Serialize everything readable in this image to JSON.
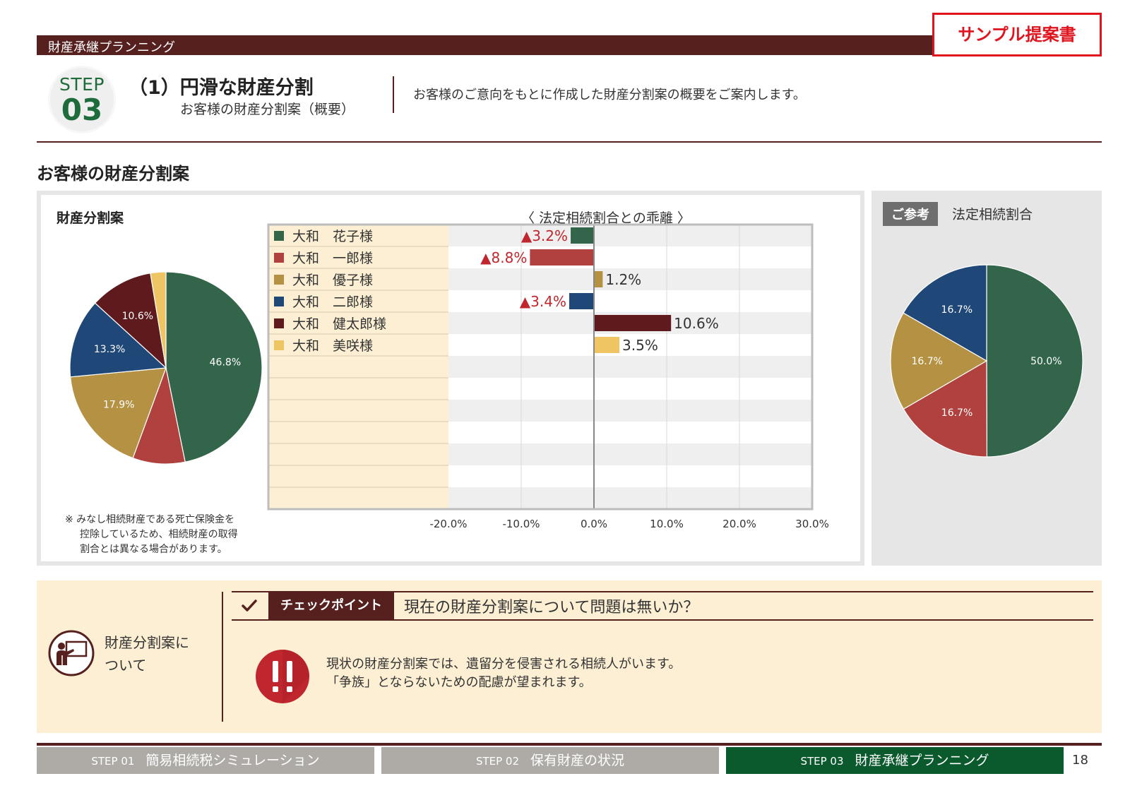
{
  "header": {
    "section_name": "財産承継プランニング",
    "sample_badge": "サンプル提案書"
  },
  "step": {
    "label": "STEP",
    "number": "03",
    "title": "（1）円滑な財産分割",
    "subtitle": "お客様の財産分割案（概要）",
    "intro": "お客様のご意向をもとに作成した財産分割案の概要をご案内します。"
  },
  "section_title": "お客様の財産分割案",
  "division_panel": {
    "title": "財産分割案",
    "gap_title": "〈 法定相続割合との乖離 〉",
    "note_line1": "※ みなし相続財産である死亡保険金を",
    "note_line2": "控除しているため、相続財産の取得",
    "note_line3": "割合とは異なる場合があります。"
  },
  "reference_panel": {
    "badge": "ご参考",
    "title": "法定相続割合"
  },
  "colors": {
    "green": "#33654a",
    "red": "#b0413e",
    "gold": "#b59243",
    "blue": "#1f4778",
    "maroon": "#5e1a1d",
    "yellow": "#efc564",
    "brand": "#56201f",
    "step_green": "#1e6b3c"
  },
  "chart_data": [
    {
      "type": "pie",
      "title": "財産分割案",
      "slices": [
        {
          "value": 46.8,
          "label": "46.8%",
          "color": "#33654a"
        },
        {
          "value": 8.8,
          "label": "",
          "color": "#b0413e"
        },
        {
          "value": 17.9,
          "label": "17.9%",
          "color": "#b59243"
        },
        {
          "value": 13.3,
          "label": "13.3%",
          "color": "#1f4778"
        },
        {
          "value": 10.6,
          "label": "10.6%",
          "color": "#5e1a1d"
        },
        {
          "value": 2.6,
          "label": "",
          "color": "#efc564"
        }
      ]
    },
    {
      "type": "bar",
      "title": "〈 法定相続割合との乖離 〉",
      "orientation": "horizontal",
      "categories": [
        "大和　花子様",
        "大和　一郎様",
        "大和　優子様",
        "大和　二郎様",
        "大和　健太郎様",
        "大和　美咲様"
      ],
      "values": [
        -3.2,
        -8.8,
        1.2,
        -3.4,
        10.6,
        3.5
      ],
      "value_labels": [
        "▲3.2%",
        "▲8.8%",
        "1.2%",
        "▲3.4%",
        "10.6%",
        "3.5%"
      ],
      "colors": [
        "#33654a",
        "#b0413e",
        "#b59243",
        "#1f4778",
        "#5e1a1d",
        "#efc564"
      ],
      "xlim": [
        -20,
        30
      ],
      "ticks": [
        -20,
        -10,
        0,
        10,
        20,
        30
      ],
      "tick_labels": [
        "-20.0%",
        "-10.0%",
        "0.0%",
        "10.0%",
        "20.0%",
        "30.0%"
      ],
      "row_count": 13,
      "grid": true
    },
    {
      "type": "pie",
      "title": "法定相続割合",
      "slices": [
        {
          "value": 50.0,
          "label": "50.0%",
          "color": "#33654a"
        },
        {
          "value": 16.7,
          "label": "16.7%",
          "color": "#b0413e"
        },
        {
          "value": 16.7,
          "label": "16.7%",
          "color": "#b59243"
        },
        {
          "value": 16.7,
          "label": "16.7%",
          "color": "#1f4778"
        }
      ]
    }
  ],
  "checkpoint": {
    "about_line1": "財産分割案に",
    "about_line2": "ついて",
    "badge": "チェックポイント",
    "question": "現在の財産分割案について問題は無いか？",
    "message_line1": "現状の財産分割案では、遺留分を侵害される相続人がいます。",
    "message_line2": "「争族」とならないための配慮が望まれます。",
    "icon_about": "presenter-icon",
    "icon_check": "check-icon",
    "icon_warn": "double-exclamation-icon"
  },
  "footer": {
    "tab1_step": "STEP 01",
    "tab1_label": "簡易相続税シミュレーション",
    "tab2_step": "STEP 02",
    "tab2_label": "保有財産の状況",
    "tab3_step": "STEP 03",
    "tab3_label": "財産承継プランニング",
    "page_number": "18"
  }
}
